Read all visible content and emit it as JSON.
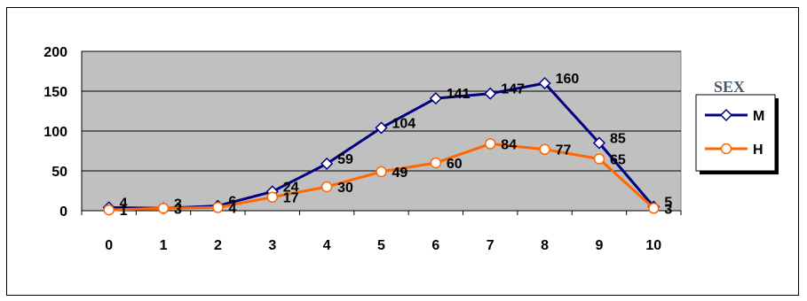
{
  "chart_data": {
    "type": "line",
    "title": "",
    "xlabel": "",
    "ylabel": "",
    "x": [
      0,
      1,
      2,
      3,
      4,
      5,
      6,
      7,
      8,
      9,
      10
    ],
    "x_tick_labels": [
      "0",
      "1",
      "2",
      "3",
      "4",
      "5",
      "6",
      "7",
      "8",
      "9",
      "10"
    ],
    "y_tick_labels": [
      "0",
      "50",
      "100",
      "150",
      "200"
    ],
    "ylim": [
      0,
      200
    ],
    "grid": true,
    "legend_title": "SEX",
    "legend_position": "right",
    "plot_background": "#c0c0c0",
    "series": [
      {
        "name": "M",
        "color": "#000080",
        "marker": "diamond",
        "values": [
          4,
          3,
          6,
          24,
          59,
          104,
          141,
          147,
          160,
          85,
          5
        ],
        "labels": [
          "4",
          "3",
          "6",
          "24",
          "59",
          "104",
          "141",
          "147",
          "160",
          "85",
          "5"
        ]
      },
      {
        "name": "H",
        "color": "#ff6600",
        "marker": "circle",
        "values": [
          1,
          3,
          4,
          17,
          30,
          49,
          60,
          84,
          77,
          65,
          3
        ],
        "labels": [
          "1",
          "3",
          "4",
          "17",
          "30",
          "49",
          "60",
          "84",
          "77",
          "65",
          "3"
        ]
      }
    ]
  }
}
